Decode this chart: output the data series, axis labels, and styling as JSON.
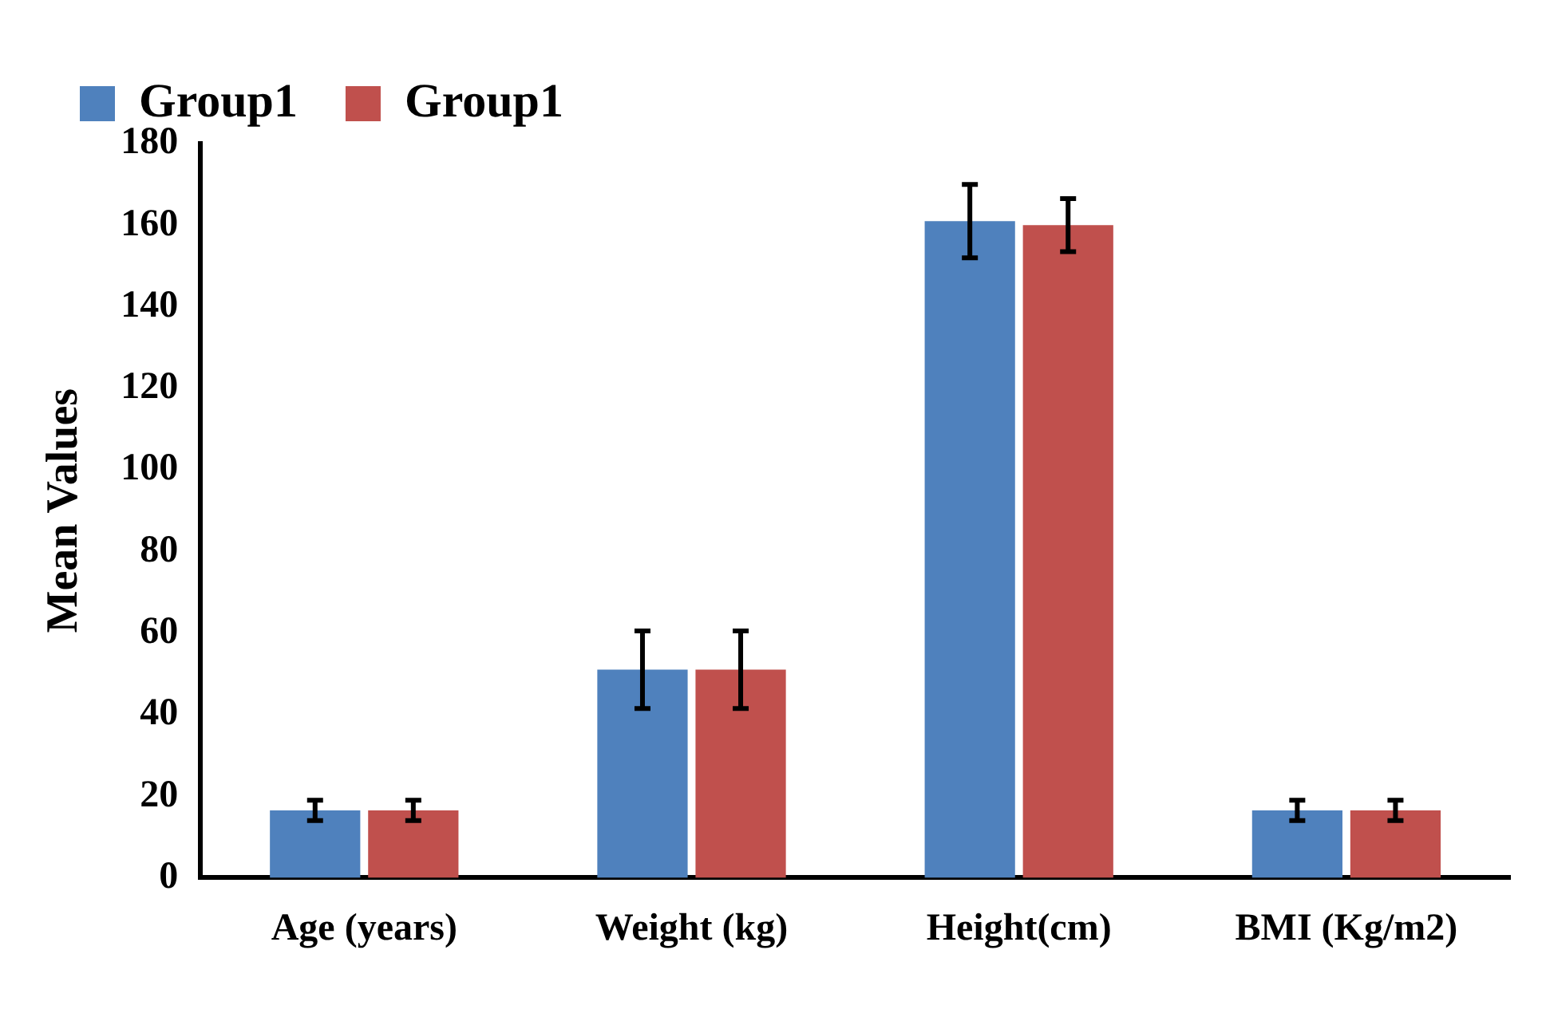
{
  "chart_data": {
    "type": "bar",
    "ylabel": "Mean Values",
    "categories": [
      "Age (years)",
      "Weight (kg)",
      "Height(cm)",
      "BMI (Kg/m2)"
    ],
    "series": [
      {
        "name": "Group1",
        "color": "#4f81bd",
        "values": [
          16.5,
          51,
          161,
          16.5
        ],
        "errors": [
          2.5,
          9.5,
          9,
          2.5
        ]
      },
      {
        "name": "Group1",
        "color": "#c0504d",
        "values": [
          16.5,
          51,
          160,
          16.5
        ],
        "errors": [
          2.5,
          9.5,
          6.5,
          2.5
        ]
      }
    ],
    "ylim": [
      0,
      180
    ],
    "yticks": [
      0,
      20,
      40,
      60,
      80,
      100,
      120,
      140,
      160,
      180
    ],
    "grid": false,
    "legend": "top left"
  }
}
